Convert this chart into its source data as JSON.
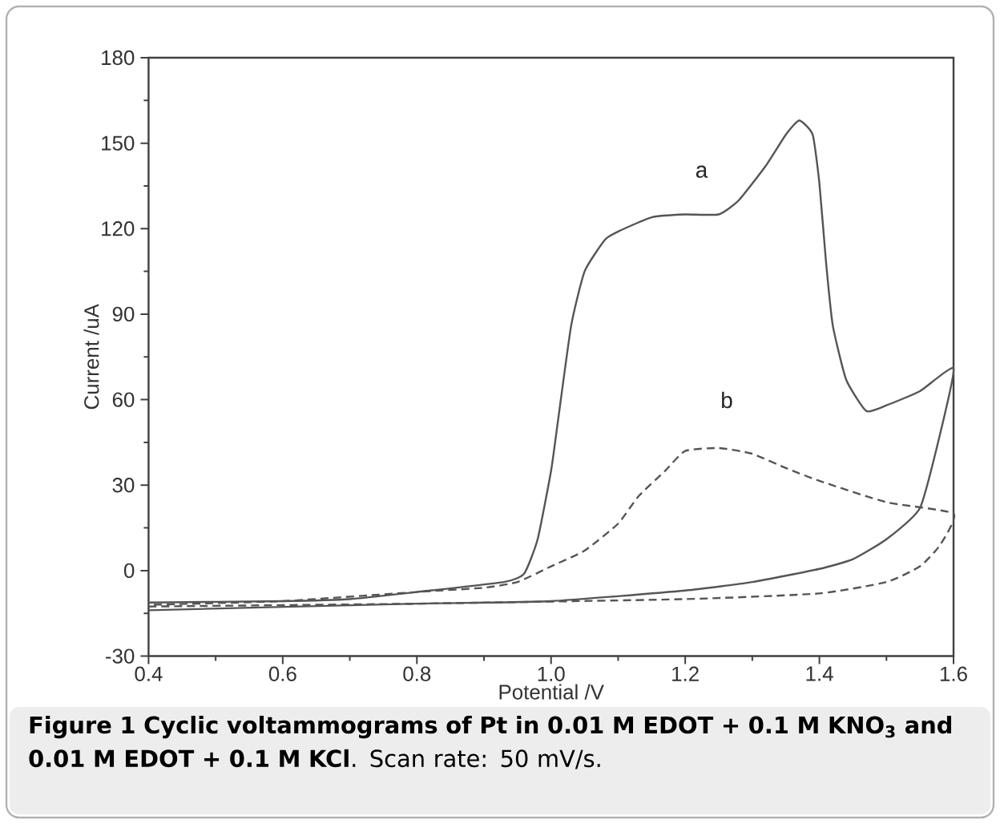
{
  "chart_data": {
    "type": "line",
    "title": "**Figure 1 Cyclic voltammograms of Pt in 0.01 M EDOT + 0.1 M KNO$_{3}$ and 0.01 M EDOT + 0.1 M KCl**. Scan rate: 50 mV/s.",
    "xlabel": "Potential /V",
    "ylabel": "Current /uA",
    "xlim": [
      0.4,
      1.6
    ],
    "ylim": [
      -30,
      180
    ],
    "xticks": [
      {
        "value": 0.4,
        "label": "0.4"
      },
      {
        "value": 0.6,
        "label": "0.6"
      },
      {
        "value": 0.8,
        "label": "0.8"
      },
      {
        "value": 1.0,
        "label": "1.0"
      },
      {
        "value": 1.2,
        "label": "1.2"
      },
      {
        "value": 1.4,
        "label": "1.4"
      },
      {
        "value": 1.6,
        "label": "1.6"
      }
    ],
    "yticks": [
      -30,
      0,
      30,
      60,
      90,
      120,
      150,
      180
    ],
    "grid": false,
    "marker": "none",
    "series": [
      {
        "name": "a",
        "color": "#555555",
        "line_style": "solid",
        "x": [
          0.4,
          0.8,
          1.0,
          1.2,
          1.3,
          1.4,
          1.45,
          1.5,
          1.55,
          1.58,
          1.6,
          1.55,
          1.5,
          1.47,
          1.44,
          1.42,
          1.41,
          1.4,
          1.39,
          1.37,
          1.35,
          1.32,
          1.28,
          1.25,
          1.2,
          1.15,
          1.1,
          1.08,
          1.05,
          1.03,
          1.01,
          1.0,
          0.98,
          0.96,
          0.93,
          0.8,
          0.7,
          0.6,
          0.4
        ],
        "values": [
          -13.9,
          -11.6,
          -10.7,
          -7,
          -4,
          0.6,
          4,
          11,
          22,
          48,
          71,
          63,
          58,
          56,
          67,
          86,
          108,
          136,
          153,
          158,
          153,
          142,
          130,
          125,
          125,
          124,
          119,
          116,
          105,
          86,
          52,
          35,
          11,
          -1,
          -4,
          -7.5,
          -10,
          -10.7,
          -11.2
        ]
      },
      {
        "name": "b",
        "color": "#555555",
        "line_style": "dashed",
        "x": [
          0.4,
          0.8,
          1.2,
          1.4,
          1.5,
          1.55,
          1.58,
          1.6,
          1.5,
          1.4,
          1.35,
          1.3,
          1.25,
          1.2,
          1.17,
          1.13,
          1.1,
          1.05,
          1.0,
          0.95,
          0.9,
          0.8,
          0.6,
          0.4
        ],
        "values": [
          -12.6,
          -11.6,
          -10,
          -8,
          -4,
          1.5,
          9,
          20,
          24,
          31.5,
          36,
          41,
          43,
          42,
          35,
          26,
          16.5,
          7,
          1.5,
          -4,
          -6,
          -7.5,
          -10.7,
          -12
        ]
      }
    ]
  }
}
